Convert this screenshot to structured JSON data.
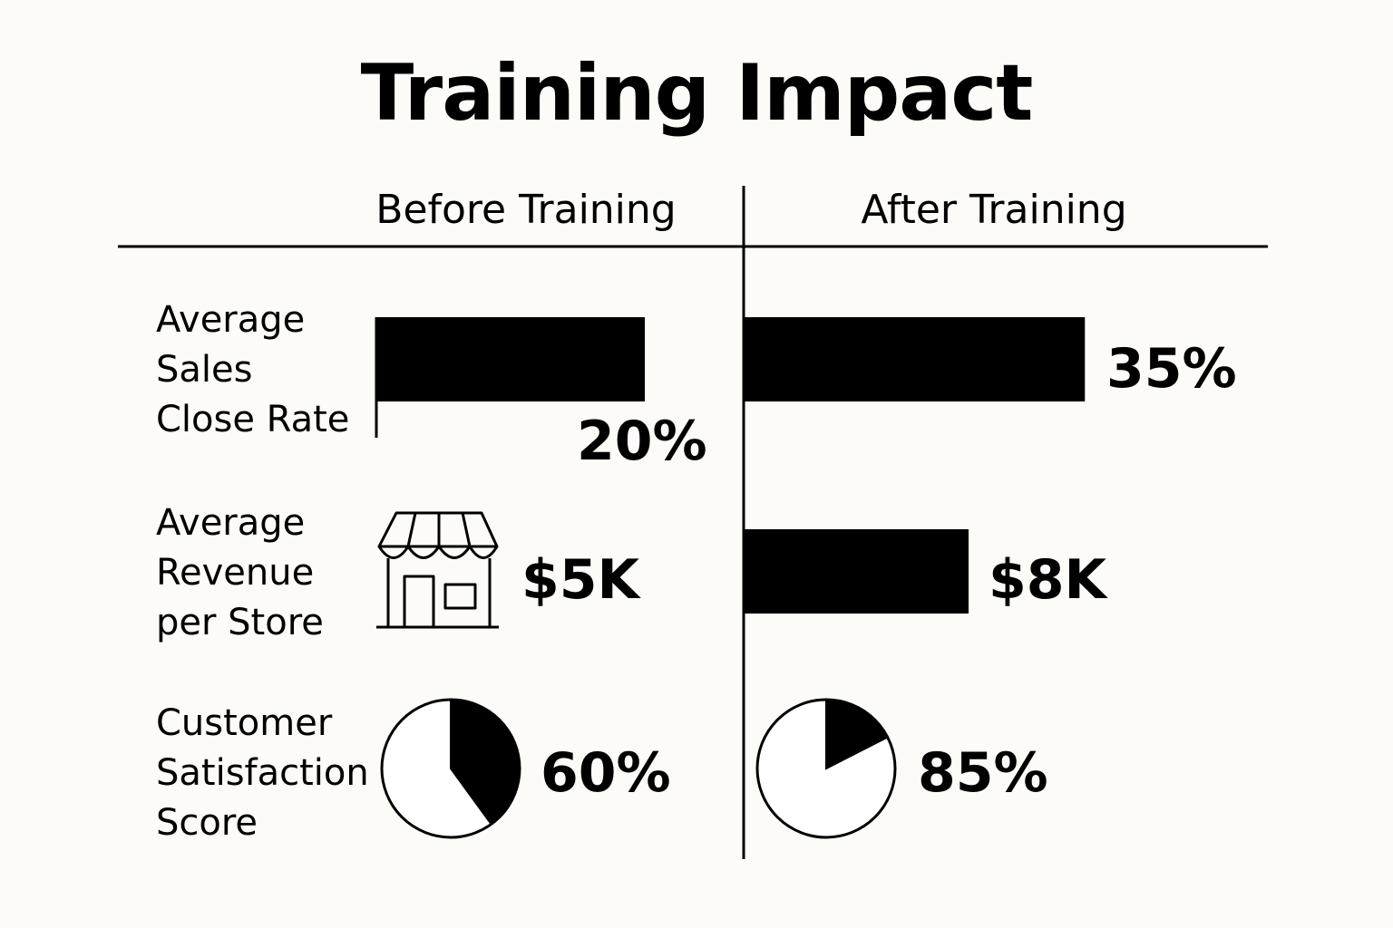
{
  "title": "Training Impact",
  "columns": {
    "before": "Before Training",
    "after": "After Training"
  },
  "rows": [
    {
      "label": "Average\nSales\nClose Rate",
      "before_display": "20%",
      "after_display": "35%"
    },
    {
      "label": "Average\nRevenue\nper Store",
      "before_display": "$5K",
      "after_display": "$8K",
      "before_icon": "storefront-icon"
    },
    {
      "label": "Customer\nSatisfaction\nScore",
      "before_display": "60%",
      "after_display": "85%"
    }
  ],
  "colors": {
    "background": "#fcfbf7",
    "ink": "#000000",
    "pie_empty": "#ffffff"
  },
  "chart_data": {
    "type": "bar",
    "title": "Training Impact",
    "categories": [
      "Average Sales Close Rate",
      "Average Revenue per Store",
      "Customer Satisfaction Score"
    ],
    "series": [
      {
        "name": "Before Training",
        "values": [
          20,
          5,
          60
        ],
        "units": [
          "%",
          "$K",
          "%"
        ]
      },
      {
        "name": "After Training",
        "values": [
          35,
          8,
          85
        ],
        "units": [
          "%",
          "$K",
          "%"
        ]
      }
    ],
    "marks": {
      "close_rate": {
        "before": "bar",
        "after": "bar"
      },
      "revenue": {
        "before": "icon",
        "after": "bar"
      },
      "satisfaction": {
        "before": "pie",
        "after": "pie"
      }
    }
  }
}
